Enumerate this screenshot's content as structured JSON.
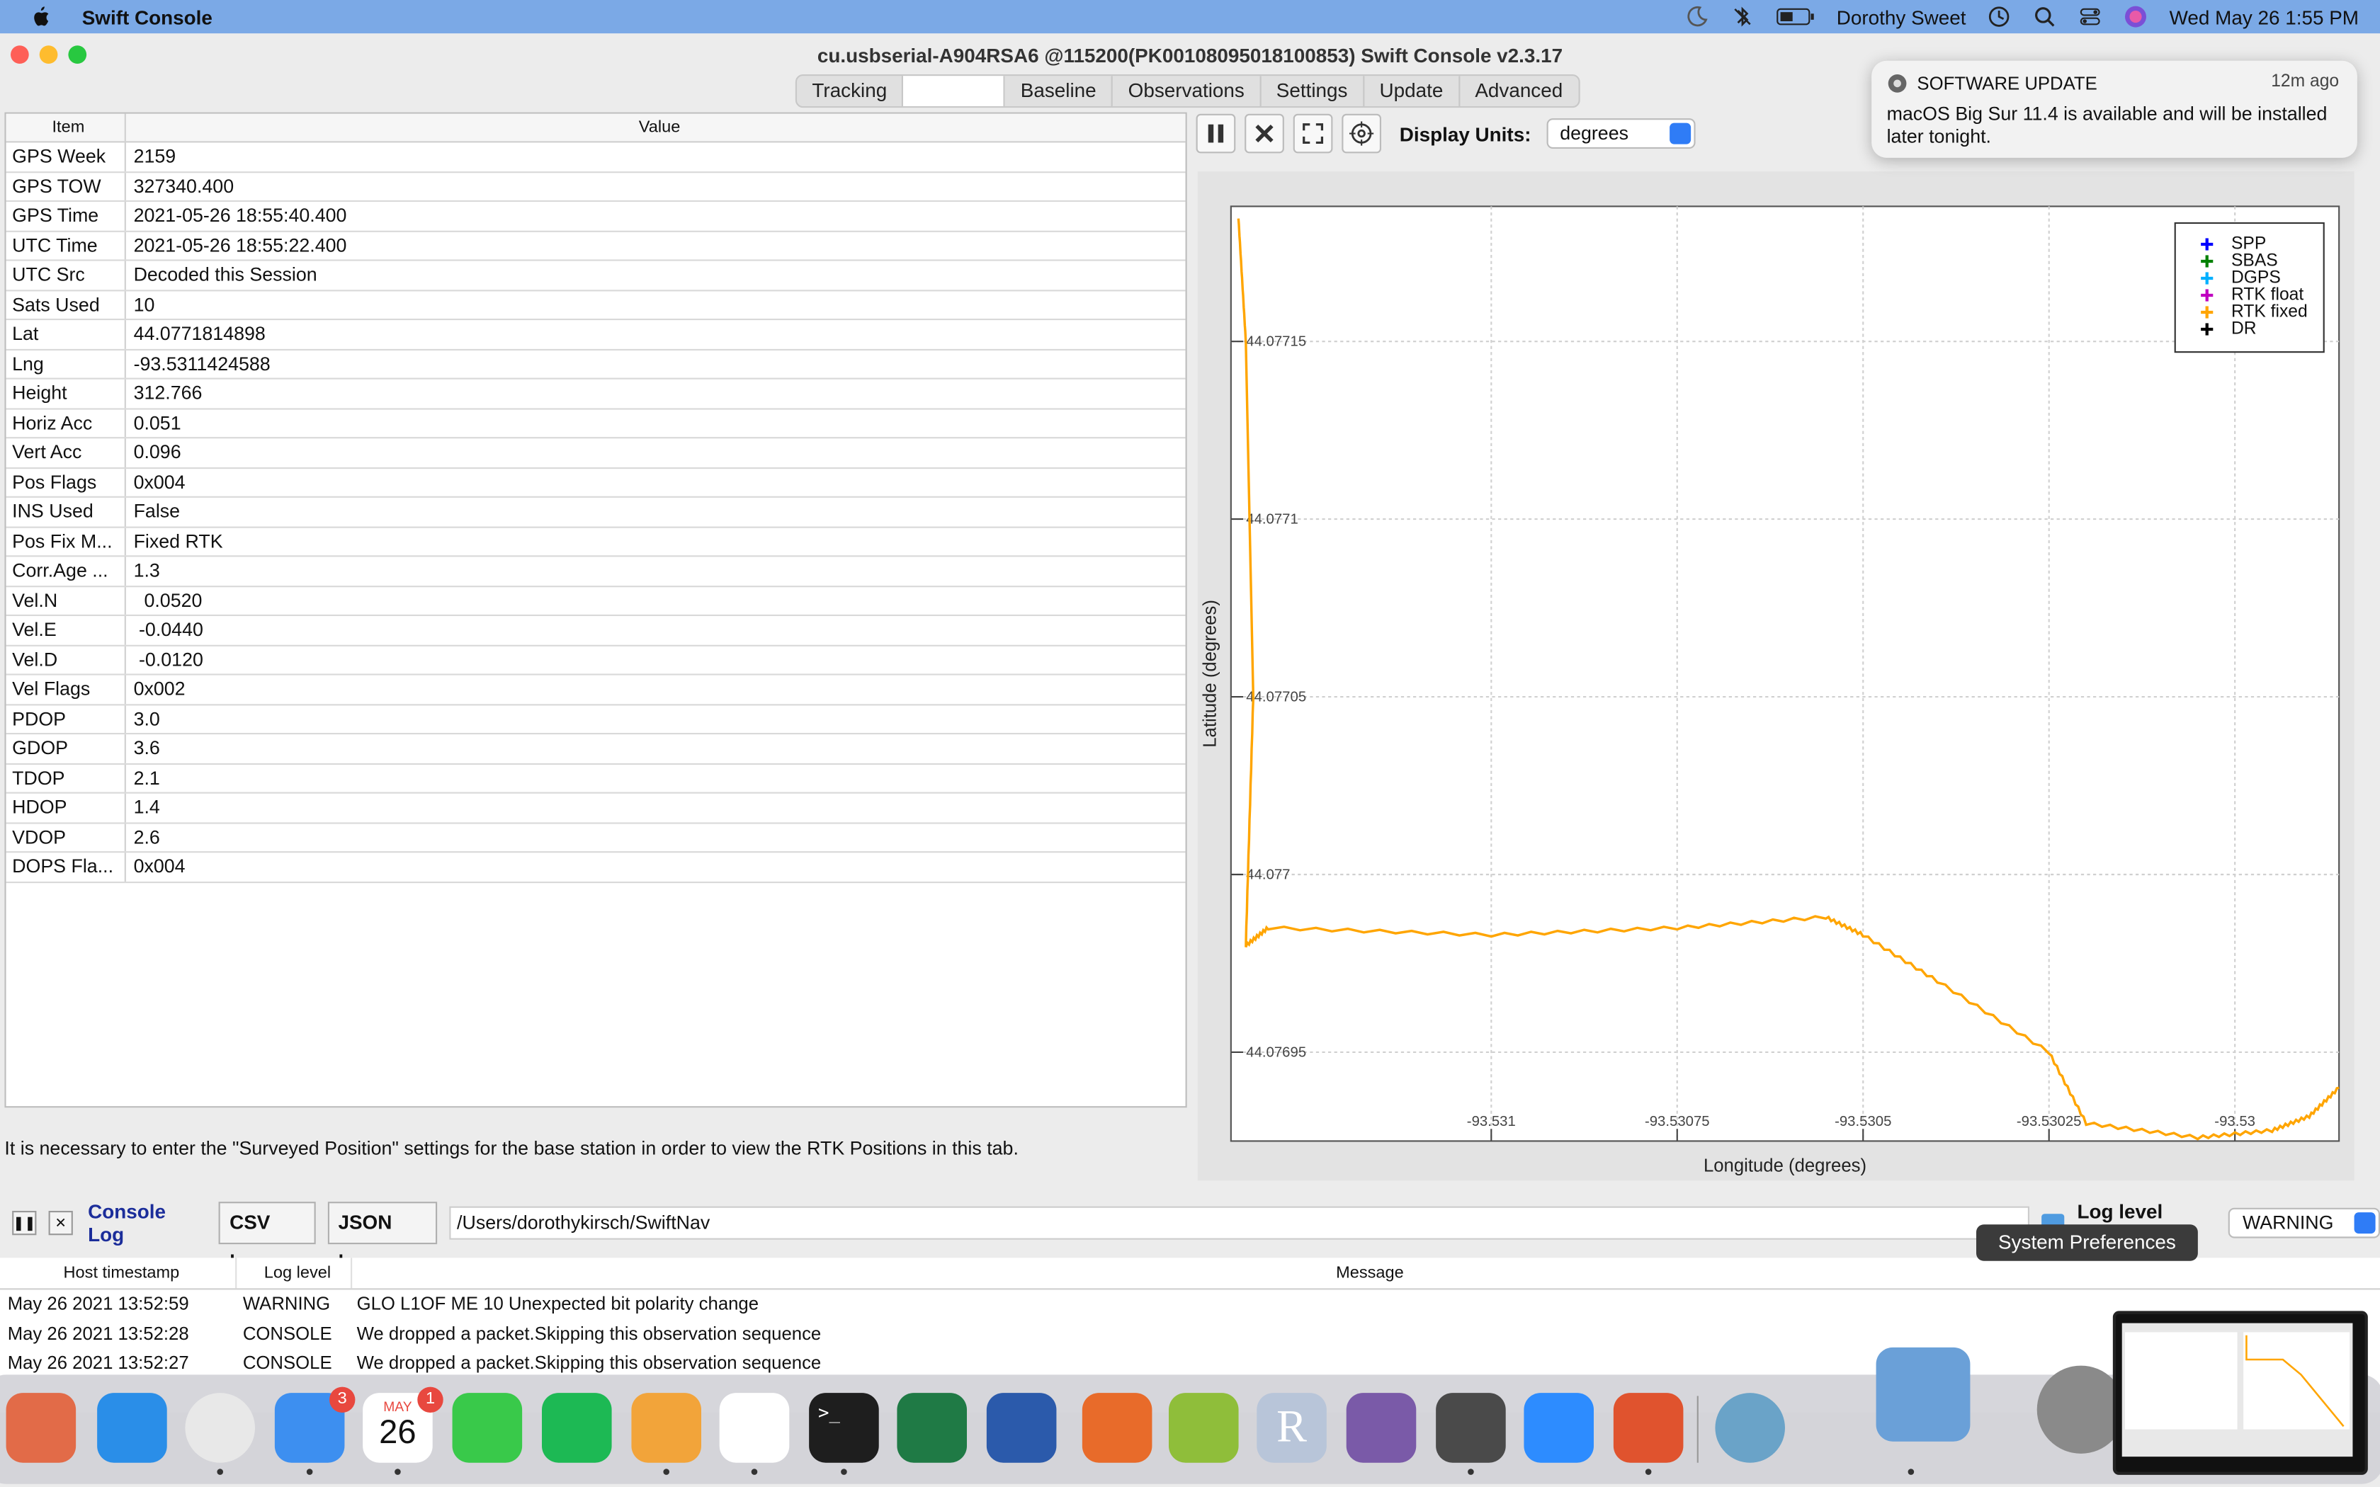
{
  "menubar": {
    "app_name": "Swift Console",
    "user": "Dorothy Sweet",
    "clock": "Wed May 26  1:55 PM"
  },
  "window": {
    "title": "cu.usbserial-A904RSA6 @115200(PK00108095018100853) Swift Console v2.3.17",
    "tabs": [
      "Tracking",
      "",
      "Baseline",
      "Observations",
      "Settings",
      "Update",
      "Advanced"
    ]
  },
  "solution_table": {
    "headers": [
      "Item",
      "Value"
    ],
    "rows": [
      [
        "GPS Week",
        "2159"
      ],
      [
        "GPS TOW",
        "327340.400"
      ],
      [
        "GPS Time",
        "2021-05-26 18:55:40.400"
      ],
      [
        "UTC Time",
        "2021-05-26 18:55:22.400"
      ],
      [
        "UTC Src",
        "Decoded this Session"
      ],
      [
        "Sats Used",
        "10"
      ],
      [
        "Lat",
        "44.0771814898"
      ],
      [
        "Lng",
        "-93.5311424588"
      ],
      [
        "Height",
        "312.766"
      ],
      [
        "Horiz Acc",
        "0.051"
      ],
      [
        "Vert Acc",
        "0.096"
      ],
      [
        "Pos Flags",
        "0x004"
      ],
      [
        "INS Used",
        "False"
      ],
      [
        "Pos Fix M...",
        "Fixed RTK"
      ],
      [
        "Corr.Age ...",
        "1.3"
      ],
      [
        "Vel.N",
        "  0.0520"
      ],
      [
        "Vel.E",
        " -0.0440"
      ],
      [
        "Vel.D",
        " -0.0120"
      ],
      [
        "Vel Flags",
        "0x002"
      ],
      [
        "PDOP",
        "3.0"
      ],
      [
        "GDOP",
        "3.6"
      ],
      [
        "TDOP",
        "2.1"
      ],
      [
        "HDOP",
        "1.4"
      ],
      [
        "VDOP",
        "2.6"
      ],
      [
        "DOPS Fla...",
        "0x004"
      ]
    ]
  },
  "info_text": "It is necessary to enter the \"Surveyed Position\" settings for the base station in order to view the RTK Positions in this tab.",
  "plot_toolbar": {
    "display_units_label": "Display Units:",
    "display_units_value": "degrees"
  },
  "chart_data": {
    "type": "line",
    "xlabel": "Longitude (degrees)",
    "ylabel": "Latitude (degrees)",
    "xlim": [
      -93.53135,
      -93.52986
    ],
    "ylim": [
      44.076925,
      44.077188
    ],
    "x_ticks": [
      -93.531,
      -93.53075,
      -93.5305,
      -93.53025,
      -93.53
    ],
    "x_tick_labels": [
      "-93.531",
      "-93.53075",
      "-93.5305",
      "-93.53025",
      "-93.53"
    ],
    "y_ticks": [
      44.07695,
      44.077,
      44.07705,
      44.0771,
      44.07715
    ],
    "y_tick_labels": [
      "44.07695",
      "44.077",
      "44.07705",
      "44.0771",
      "44.07715"
    ],
    "grid": true,
    "legend_position": "top-right",
    "legend": [
      {
        "name": "SPP",
        "color": "#0000ff"
      },
      {
        "name": "SBAS",
        "color": "#008000"
      },
      {
        "name": "DGPS",
        "color": "#00b0ff"
      },
      {
        "name": "RTK float",
        "color": "#c000c0"
      },
      {
        "name": "RTK fixed",
        "color": "#ffa500"
      },
      {
        "name": "DR",
        "color": "#000000"
      }
    ],
    "series": [
      {
        "name": "RTK fixed",
        "color": "#ffa500",
        "x": [
          -93.53134,
          -93.53133,
          -93.53132,
          -93.53133,
          -93.5313,
          -93.531,
          -93.53075,
          -93.53055,
          -93.5305,
          -93.5304,
          -93.53025,
          -93.5302,
          -93.53005,
          -93.52995,
          -93.5299,
          -93.52986
        ],
        "y": [
          44.077185,
          44.07715,
          44.07705,
          44.07698,
          44.076985,
          44.076983,
          44.076985,
          44.076988,
          44.076983,
          44.07697,
          44.07695,
          44.07693,
          44.076926,
          44.076928,
          44.076932,
          44.07694
        ]
      }
    ]
  },
  "console_log": {
    "title": "Console Log",
    "csv_label": "CSV log",
    "json_label": "JSON log",
    "path": "/Users/dorothykirsch/SwiftNav",
    "level_filter_label": "Log level filter:",
    "level_filter_value": "WARNING",
    "headers": [
      "Host timestamp",
      "Log level",
      "Message"
    ],
    "rows": [
      [
        "May 26 2021 13:52:59",
        "WARNING",
        "GLO L1OF ME 10 Unexpected bit polarity change"
      ],
      [
        "May 26 2021 13:52:28",
        "CONSOLE",
        "We dropped a packet.Skipping this observation sequence"
      ],
      [
        "May 26 2021 13:52:27",
        "CONSOLE",
        "We dropped a packet.Skipping this observation sequence"
      ]
    ]
  },
  "notification": {
    "app": "SOFTWARE UPDATE",
    "time": "12m ago",
    "body": "macOS Big Sur 11.4 is available and will be installed later tonight."
  },
  "tooltip": "System Preferences",
  "dock": {
    "calendar_month": "MAY",
    "calendar_day": "26",
    "mail_badge": "3",
    "calendar_badge": "1",
    "r_label": "R",
    "icons": [
      {
        "name": "launchpad",
        "color": "#e26b48"
      },
      {
        "name": "safari",
        "color": "#2a8ee8"
      },
      {
        "name": "chrome",
        "color": "#e8e8e8"
      },
      {
        "name": "mail",
        "color": "#3d8ff0"
      },
      {
        "name": "calendar",
        "color": "#ffffff"
      },
      {
        "name": "messages",
        "color": "#39c94a"
      },
      {
        "name": "spotify",
        "color": "#1db954"
      },
      {
        "name": "swift-console",
        "color": "#f2a43a"
      },
      {
        "name": "slack",
        "color": "#ffffff"
      },
      {
        "name": "terminal",
        "color": "#1e1e1e"
      },
      {
        "name": "excel",
        "color": "#1f7a45"
      },
      {
        "name": "word",
        "color": "#2b5aab"
      },
      {
        "name": "matlab",
        "color": "#e86b2a"
      },
      {
        "name": "qgis",
        "color": "#8fbe3a"
      },
      {
        "name": "r",
        "color": "#b8c5d9"
      },
      {
        "name": "github",
        "color": "#7a5aa8"
      },
      {
        "name": "sublime",
        "color": "#4a4a4a"
      },
      {
        "name": "zoom",
        "color": "#2d8cff"
      },
      {
        "name": "remote-desktop",
        "color": "#e0532e"
      },
      {
        "name": "vpn",
        "color": "#6aa3c8"
      },
      {
        "name": "preview",
        "color": "#6aa0d8"
      },
      {
        "name": "system-preferences",
        "color": "#8a8a8a"
      }
    ]
  }
}
